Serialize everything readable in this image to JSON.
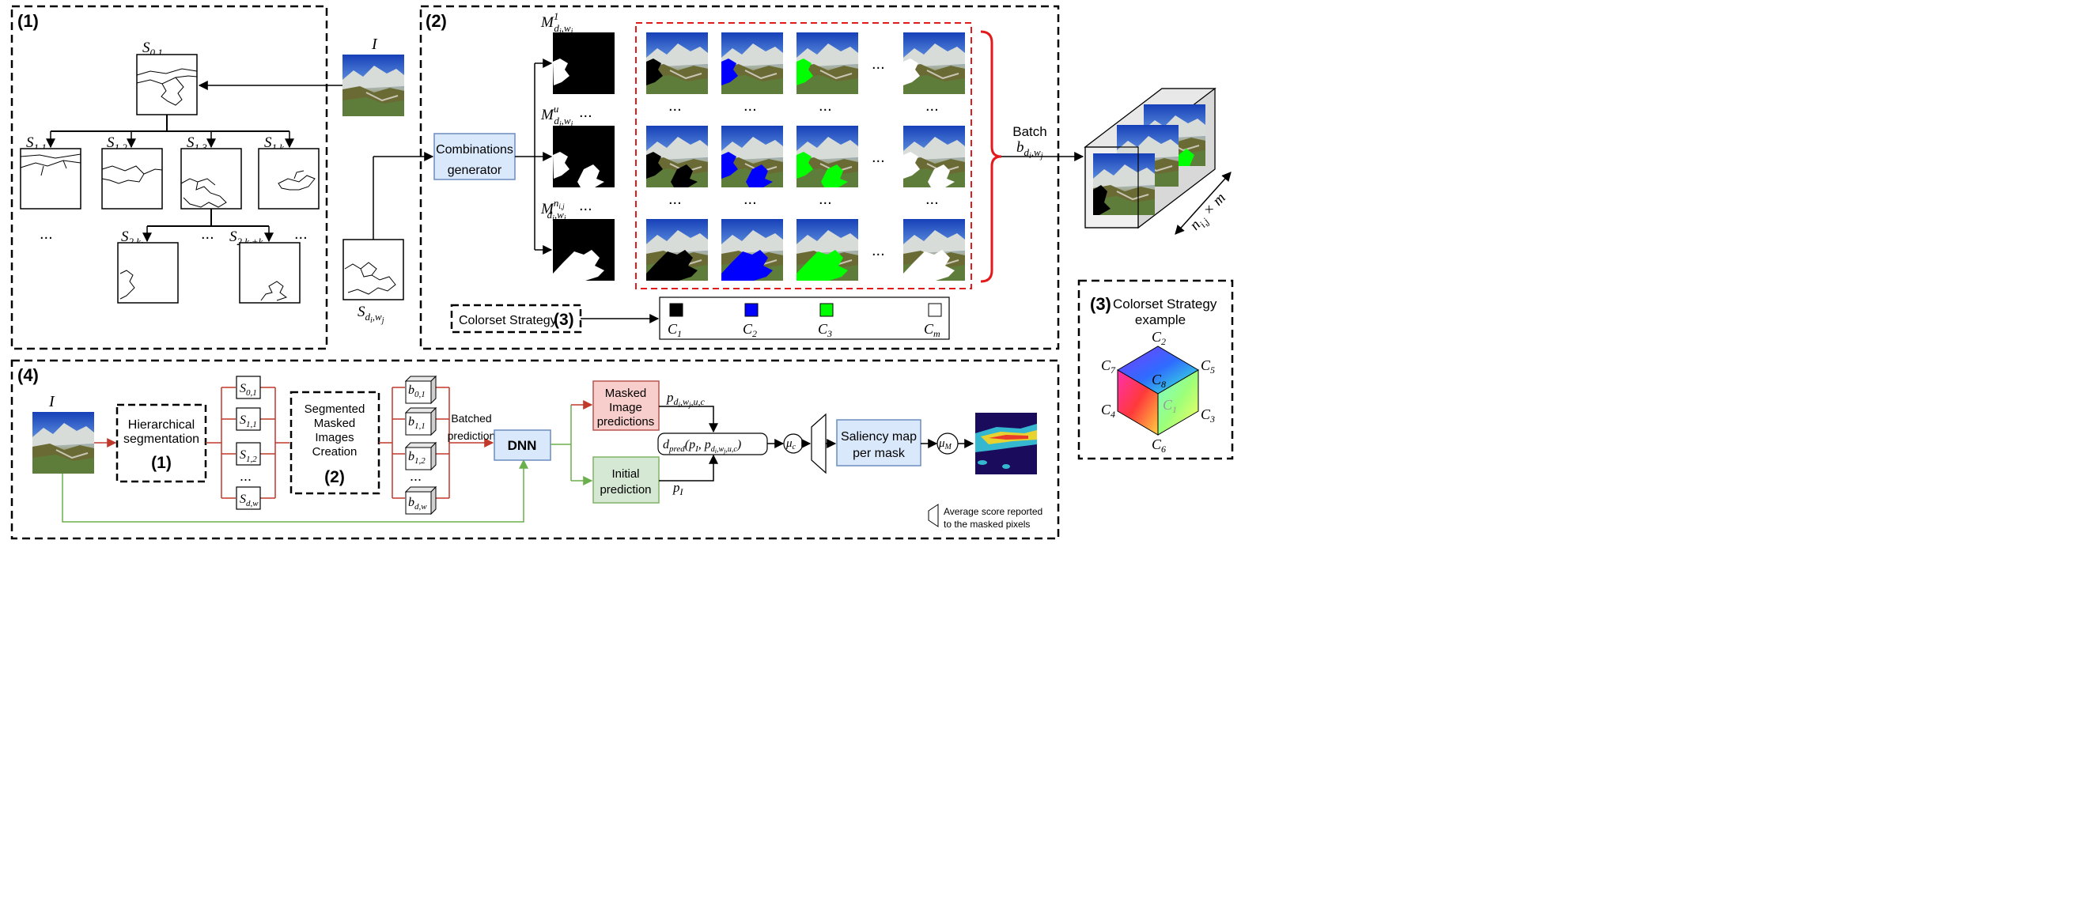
{
  "panel1": {
    "number": "(1)",
    "image_label": "I",
    "s01": "S",
    "s01_sub": "0,1",
    "level1": [
      {
        "main": "S",
        "sub": "1,1"
      },
      {
        "main": "S",
        "sub": "1,2"
      },
      {
        "main": "S",
        "sub": "1,3"
      },
      {
        "main": "S",
        "sub": "1,k"
      }
    ],
    "level2": [
      {
        "main": "S",
        "sub": "2,k",
        "subsub": "l"
      },
      {
        "main": "S",
        "sub": "2,k",
        "subsub": "l",
        "tail": "+k"
      }
    ],
    "ellipsis": "...",
    "sdw": {
      "main": "S",
      "sub": "d",
      "subsub_i": "i",
      "sep": ",w",
      "subsub_j": "j"
    }
  },
  "panel2": {
    "number": "(2)",
    "generator_line1": "Combinations",
    "generator_line2": "generator",
    "masks": [
      {
        "main": "M",
        "sup": "1",
        "sub": "d",
        "subsub": "i",
        "sep": ",w",
        "subsub2": "j"
      },
      {
        "main": "M",
        "sup": "u",
        "sub": "d",
        "subsub": "i",
        "sep": ",w",
        "subsub2": "j"
      },
      {
        "main": "M",
        "sup": "n",
        "supsub": "i,j",
        "sub": "d",
        "subsub": "i",
        "sep": ",w",
        "subsub2": "j"
      }
    ],
    "ellipsis": "...",
    "batch_label": "Batch",
    "batch_var": {
      "main": "b",
      "sub": "d",
      "subsub": "i",
      "sep": ",w",
      "subsub2": "j"
    },
    "stack_dim": "n",
    "stack_dim_sub": "i,j",
    "stack_dim_tail": " × m",
    "colorset_label": "Colorset Strategy",
    "colorset_num": "(3)",
    "colors": [
      {
        "label": "C",
        "sub": "1",
        "color": "#000000"
      },
      {
        "label": "C",
        "sub": "2",
        "color": "#0000ff"
      },
      {
        "label": "C",
        "sub": "3",
        "color": "#00ff00"
      },
      {
        "label": "C",
        "sub": "m",
        "color": "#ffffff"
      }
    ],
    "accent_red": "#e31a1c"
  },
  "panel3": {
    "number": "(3)",
    "title_line1": "Colorset Strategy",
    "title_line2": "example",
    "cube_labels": [
      {
        "label": "C",
        "sub": "2"
      },
      {
        "label": "C",
        "sub": "5"
      },
      {
        "label": "C",
        "sub": "7"
      },
      {
        "label": "C",
        "sub": "8"
      },
      {
        "label": "C",
        "sub": "1"
      },
      {
        "label": "C",
        "sub": "4"
      },
      {
        "label": "C",
        "sub": "3"
      },
      {
        "label": "C",
        "sub": "6"
      }
    ]
  },
  "panel4": {
    "number": "(4)",
    "image_label": "I",
    "hier_line1": "Hierarchical",
    "hier_line2": "segmentation",
    "hier_num": "(1)",
    "segs": [
      {
        "main": "S",
        "sub": "0,1"
      },
      {
        "main": "S",
        "sub": "1,1"
      },
      {
        "main": "S",
        "sub": "1,2"
      },
      {
        "main": "S",
        "sub": "d,w"
      }
    ],
    "smic_lines": [
      "Segmented",
      "Masked",
      "Images",
      "Creation"
    ],
    "smic_num": "(2)",
    "batches": [
      {
        "main": "b",
        "sub": "0,1"
      },
      {
        "main": "b",
        "sub": "1,1"
      },
      {
        "main": "b",
        "sub": "1,2"
      },
      {
        "main": "b",
        "sub": "d,w"
      }
    ],
    "ellipsis": "...",
    "batched_line1": "Batched",
    "batched_line2": "prediction",
    "dnn": "DNN",
    "masked_pred": [
      "Masked",
      "Image",
      "predictions"
    ],
    "initial_pred": [
      "Initial",
      "prediction"
    ],
    "p_masked": {
      "main": "p",
      "sub": "d",
      "subsub": "i",
      "sep": ",w",
      "subsub2": "j",
      "tail": ",u,c"
    },
    "p_initial": {
      "main": "p",
      "sub": "I"
    },
    "dpred": {
      "main": "d",
      "sub": "pred"
    },
    "mu_c": {
      "main": "μ",
      "sub": "c"
    },
    "mu_m": {
      "main": "μ",
      "sub": "M"
    },
    "saliency": [
      "Saliency map",
      "per mask"
    ],
    "legend_line1": "Average score reported",
    "legend_line2": "to the masked pixels",
    "colors": {
      "red_arrow": "#c0392b",
      "green_arrow": "#6ab04c",
      "blue_box": "#dae8fc",
      "red_box": "#f8cecc",
      "green_box": "#d5e8d4"
    }
  }
}
